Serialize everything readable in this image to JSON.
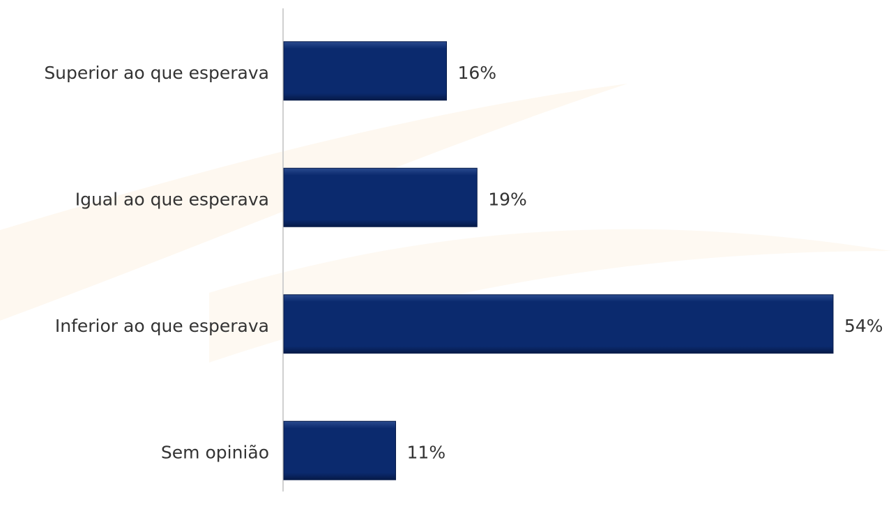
{
  "chart_data": {
    "type": "bar",
    "orientation": "horizontal",
    "categories": [
      "Superior ao que esperava",
      "Igual ao que esperava",
      "Inferior ao que esperava",
      "Sem opinião"
    ],
    "values": [
      16,
      19,
      54,
      11
    ],
    "value_labels": [
      "16%",
      "19%",
      "54%",
      "11%"
    ],
    "color": "#0b2a6e"
  }
}
